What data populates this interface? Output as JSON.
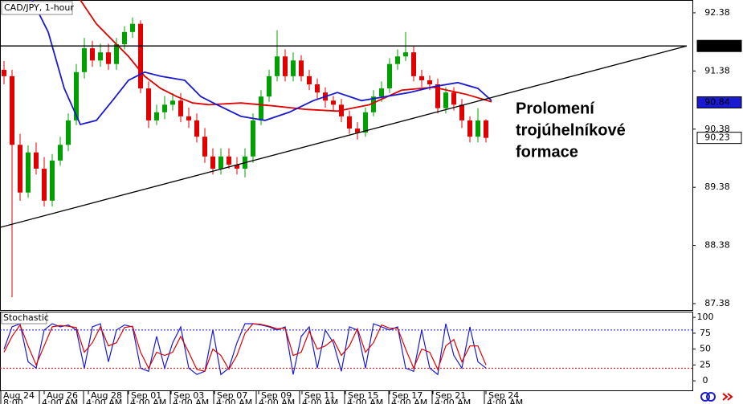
{
  "chart_data": {
    "type": "candlestick",
    "title": "CAD/JPY, 1-hour",
    "annotation": [
      "Prolomení",
      "trojúhelníkové",
      "formace"
    ],
    "xlim": [
      -0.5,
      85.7
    ],
    "ylim": [
      87.27,
      92.6
    ],
    "yticks": [
      92.38,
      91.38,
      90.38,
      89.38,
      88.38,
      87.38
    ],
    "xticks": [
      {
        "value": -0.4,
        "label": "Aug 24"
      },
      {
        "value": 5,
        "label": "Aug 26"
      },
      {
        "value": 10.5,
        "label": "Aug 28"
      },
      {
        "value": 15.5,
        "label": "Sep 01"
      },
      {
        "value": 20.8,
        "label": "Sep 03"
      },
      {
        "value": 26.2,
        "label": "Sep 07"
      },
      {
        "value": 31.7,
        "label": "Sep 09"
      },
      {
        "value": 37.1,
        "label": "Sep 11"
      },
      {
        "value": 42.5,
        "label": "Sep 15"
      },
      {
        "value": 48,
        "label": "Sep 17"
      },
      {
        "value": 53.4,
        "label": "Sep 21"
      },
      {
        "value": 60,
        "label": "Sep 24"
      }
    ],
    "xticks_sub": [
      {
        "value": -0.4,
        "label": "8:00"
      },
      {
        "value": 4.4,
        "label": "4:00 AM"
      },
      {
        "value": 9.9,
        "label": "4:00 AM"
      },
      {
        "value": 15.4,
        "label": "4:00 AM"
      },
      {
        "value": 20.7,
        "label": "4:00 AM"
      },
      {
        "value": 26.1,
        "label": "4:00 AM"
      },
      {
        "value": 31.4,
        "label": "4:00 AM"
      },
      {
        "value": 36.8,
        "label": "4:00 AM"
      },
      {
        "value": 42.4,
        "label": "4:00 AM"
      },
      {
        "value": 47.9,
        "label": "4:00 AM"
      },
      {
        "value": 53.3,
        "label": "4:00 AM"
      },
      {
        "value": 59.8,
        "label": "4:00 AM"
      }
    ],
    "up_color": "#00a000",
    "down_color": "#e00000",
    "candles": {
      "open": [
        91.4,
        91.29,
        90.11,
        89.29,
        89.98,
        89.7,
        89.15,
        89.84,
        90.11,
        90.53,
        91.36,
        91.77,
        91.56,
        91.7,
        91.5,
        91.84,
        92.05,
        92.19,
        91.08,
        90.53,
        90.67,
        90.8,
        90.87,
        90.6,
        90.53,
        90.25,
        89.91,
        89.7,
        89.91,
        89.77,
        89.7,
        89.91,
        90.53,
        90.94,
        91.29,
        91.63,
        91.29,
        91.56,
        91.29,
        91.15,
        91.01,
        90.87,
        90.8,
        90.6,
        90.39,
        90.32,
        90.67,
        90.94,
        91.08,
        91.5,
        91.63,
        91.7,
        91.29,
        91.22,
        91.15,
        90.74,
        91.01,
        90.8,
        90.53,
        90.25,
        90.53
      ],
      "high": [
        91.55,
        91.4,
        90.3,
        90.1,
        90.15,
        89.9,
        89.95,
        90.25,
        90.65,
        91.5,
        91.95,
        91.9,
        91.85,
        91.85,
        91.95,
        92.15,
        92.3,
        92.25,
        91.2,
        90.8,
        90.95,
        91.0,
        91.0,
        90.75,
        90.65,
        90.4,
        90.05,
        90.05,
        90.05,
        89.9,
        90.05,
        90.65,
        91.05,
        91.4,
        92.08,
        91.75,
        91.7,
        91.65,
        91.4,
        91.25,
        91.1,
        90.95,
        90.9,
        90.7,
        90.5,
        90.75,
        91.05,
        91.2,
        91.6,
        91.75,
        92.05,
        91.8,
        91.4,
        91.3,
        91.25,
        91.1,
        91.1,
        90.9,
        90.6,
        90.74,
        90.55
      ],
      "low": [
        91.15,
        87.49,
        89.15,
        89.2,
        89.6,
        89.05,
        89.05,
        89.75,
        90.0,
        90.45,
        91.25,
        91.45,
        91.45,
        91.4,
        91.4,
        91.75,
        91.95,
        91.0,
        90.4,
        90.45,
        90.55,
        90.7,
        90.5,
        90.4,
        90.15,
        89.8,
        89.6,
        89.6,
        89.7,
        89.6,
        89.55,
        89.8,
        90.45,
        90.85,
        91.2,
        91.2,
        91.2,
        91.2,
        91.05,
        90.9,
        90.75,
        90.7,
        90.5,
        90.3,
        90.2,
        90.25,
        90.6,
        90.85,
        91.0,
        91.4,
        91.55,
        91.2,
        91.1,
        91.05,
        90.65,
        90.65,
        90.7,
        90.4,
        90.15,
        90.15,
        90.15
      ],
      "close": [
        91.29,
        90.11,
        89.29,
        89.98,
        89.7,
        89.15,
        89.84,
        90.11,
        90.53,
        91.36,
        91.77,
        91.56,
        91.7,
        91.5,
        91.84,
        92.05,
        92.19,
        91.08,
        90.53,
        90.67,
        90.8,
        90.87,
        90.6,
        90.53,
        90.25,
        89.91,
        89.7,
        89.91,
        89.77,
        89.7,
        89.91,
        90.53,
        90.94,
        91.29,
        91.63,
        91.29,
        91.56,
        91.29,
        91.15,
        91.01,
        90.87,
        90.8,
        90.6,
        90.39,
        90.32,
        90.67,
        90.94,
        91.08,
        91.5,
        91.63,
        91.7,
        91.29,
        91.22,
        91.15,
        90.74,
        91.01,
        90.8,
        90.53,
        90.25,
        90.53,
        90.23
      ]
    },
    "lines": [
      {
        "color": "#e00000",
        "x": [
          9.5,
          11.5,
          13.5,
          15.5,
          17.5,
          19.5,
          21.5,
          23.5,
          25.5,
          29.5,
          33.5,
          37.5,
          41.5,
          45.5,
          49.5,
          53.5,
          57.5,
          60.7
        ],
        "values": [
          92.6,
          92.19,
          91.91,
          91.63,
          91.29,
          91.08,
          90.94,
          90.83,
          90.8,
          90.83,
          90.78,
          90.72,
          90.69,
          90.8,
          91.05,
          91.1,
          90.98,
          90.85
        ]
      },
      {
        "color": "#1a1ad0",
        "x": [
          3.5,
          5.5,
          7.5,
          9.5,
          11.5,
          13.5,
          15.5,
          17.5,
          19.5,
          22.5,
          24.5,
          26.5,
          29.5,
          32.5,
          35.5,
          38.5,
          41.5,
          44.5,
          47.5,
          50.5,
          53.5,
          56.5,
          59,
          60.7
        ],
        "values": [
          92.6,
          92.05,
          91.08,
          90.46,
          90.53,
          90.87,
          91.22,
          91.36,
          91.29,
          91.22,
          90.94,
          90.8,
          90.6,
          90.53,
          90.67,
          90.87,
          91.01,
          90.87,
          90.94,
          91.01,
          91.11,
          91.18,
          91.08,
          90.87
        ]
      },
      {
        "color": "#000000",
        "x": [
          -0.5,
          85
        ],
        "values": [
          91.81,
          91.81
        ]
      },
      {
        "color": "#000000",
        "x": [
          -0.5,
          85
        ],
        "values": [
          88.69,
          91.81
        ]
      }
    ],
    "price_markers": [
      {
        "value": 91.81,
        "background": "#000000",
        "color": "#ffffff"
      },
      {
        "value": 90.84,
        "background": "#1a1ad0",
        "color": "#ffffff"
      },
      {
        "value": 90.23,
        "background": "#ffffff",
        "color": "#000000"
      }
    ],
    "stochastic": {
      "title": "Stochastic",
      "ylim": [
        -15,
        109
      ],
      "yticks": [
        100,
        75,
        50,
        25,
        0
      ],
      "levels": [
        {
          "value": 80,
          "color": "#1a1ad0"
        },
        {
          "value": 20,
          "color": "#e00000"
        }
      ],
      "series": [
        {
          "color": "#1a1ad0",
          "values": [
            50,
            85,
            90,
            30,
            20,
            80,
            90,
            85,
            88,
            80,
            20,
            85,
            90,
            30,
            80,
            88,
            85,
            20,
            15,
            70,
            20,
            60,
            85,
            20,
            10,
            15,
            80,
            10,
            20,
            60,
            90,
            90,
            88,
            85,
            80,
            85,
            10,
            70,
            85,
            20,
            80,
            60,
            15,
            85,
            80,
            20,
            90,
            85,
            80,
            85,
            20,
            15,
            80,
            20,
            10,
            90,
            40,
            20,
            85,
            30,
            20
          ]
        },
        {
          "color": "#e00000",
          "values": [
            45,
            70,
            88,
            55,
            25,
            55,
            85,
            87,
            86,
            84,
            45,
            60,
            85,
            55,
            60,
            84,
            86,
            45,
            20,
            45,
            40,
            45,
            70,
            45,
            18,
            15,
            50,
            40,
            18,
            40,
            75,
            90,
            89,
            86,
            82,
            83,
            40,
            45,
            78,
            50,
            55,
            65,
            40,
            55,
            82,
            45,
            60,
            88,
            83,
            83,
            50,
            20,
            50,
            45,
            18,
            55,
            65,
            30,
            55,
            55,
            25
          ]
        }
      ]
    }
  }
}
